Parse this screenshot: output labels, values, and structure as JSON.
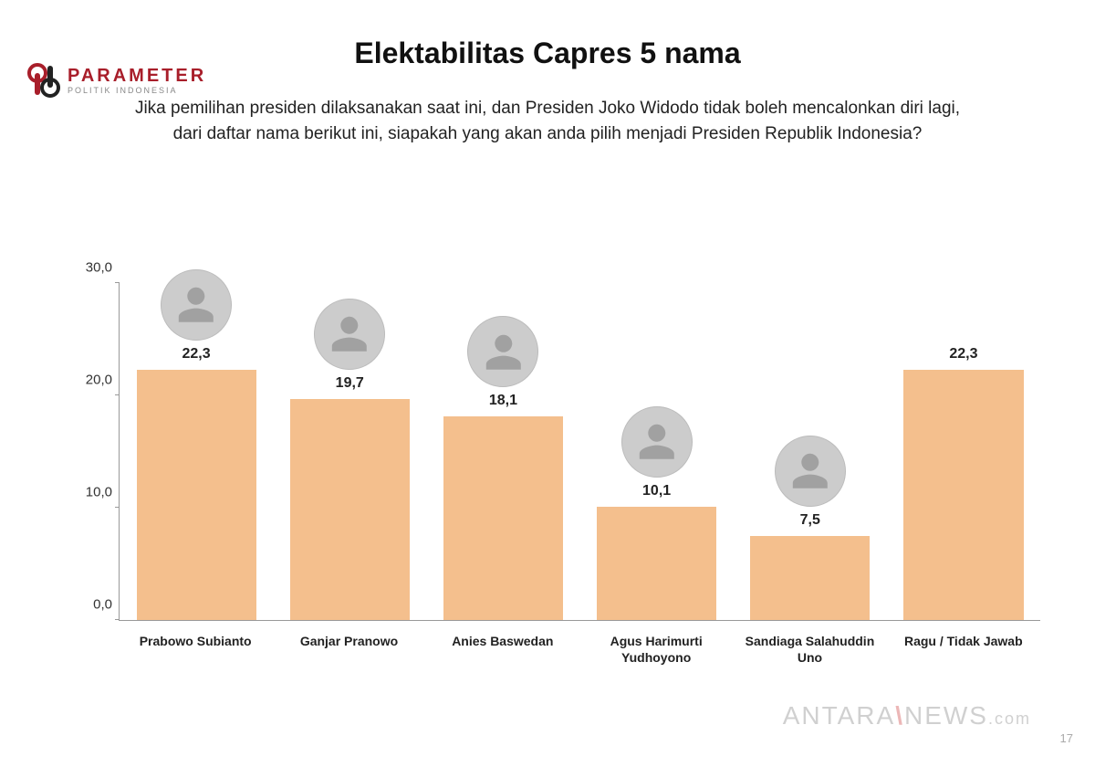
{
  "logo": {
    "brand": "PARAMETER",
    "subtitle": "POLITIK INDONESIA",
    "mark_color": "#a81e2a"
  },
  "title": "Elektabilitas Capres 5 nama",
  "question": "Jika pemilihan presiden dilaksanakan saat ini, dan Presiden Joko Widodo tidak boleh mencalonkan diri lagi, dari daftar nama berikut ini, siapakah yang akan anda pilih menjadi Presiden Republik Indonesia?",
  "chart": {
    "type": "bar",
    "bar_color": "#f4bf8d",
    "axis_color": "#999999",
    "text_color": "#222222",
    "background_color": "#ffffff",
    "value_fontsize": 16,
    "label_fontsize": 14,
    "ylim": [
      0,
      30
    ],
    "ytick_step": 10,
    "ytick_labels": [
      "0,0",
      "10,0",
      "20,0",
      "30,0"
    ],
    "bar_width_ratio": 0.78,
    "avatar_diameter": 78,
    "data": [
      {
        "label": "Prabowo Subianto",
        "value": 22.3,
        "value_label": "22,3",
        "has_avatar": true
      },
      {
        "label": "Ganjar Pranowo",
        "value": 19.7,
        "value_label": "19,7",
        "has_avatar": true
      },
      {
        "label": "Anies Baswedan",
        "value": 18.1,
        "value_label": "18,1",
        "has_avatar": true
      },
      {
        "label": "Agus Harimurti Yudhoyono",
        "value": 10.1,
        "value_label": "10,1",
        "has_avatar": true
      },
      {
        "label": "Sandiaga Salahuddin Uno",
        "value": 7.5,
        "value_label": "7,5",
        "has_avatar": true
      },
      {
        "label": "Ragu / Tidak Jawab",
        "value": 22.3,
        "value_label": "22,3",
        "has_avatar": false
      }
    ]
  },
  "watermark": {
    "left": "ANTARA",
    "right": "NEWS",
    "dotcom": ".com"
  },
  "page_number": "17"
}
